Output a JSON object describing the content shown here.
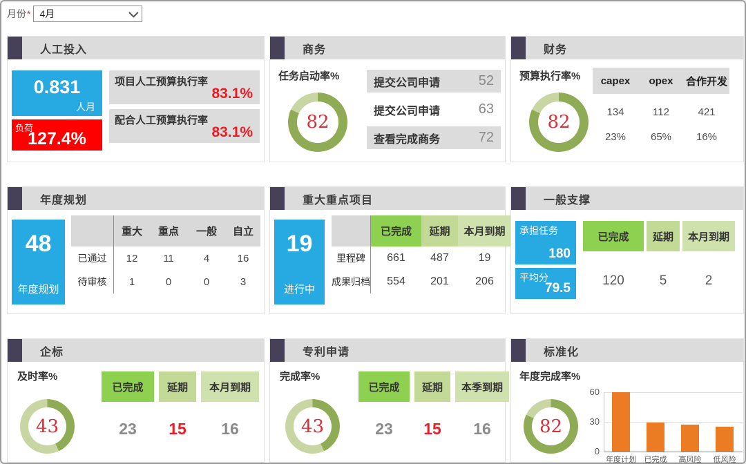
{
  "colors": {
    "accent_purple": "#474059",
    "header_gray": "#dcdcdc",
    "blue": "#27a9e1",
    "red": "#ff0000",
    "red_text": "#ed1c24",
    "donut_dark": "#8fab55",
    "donut_light": "#c9d6a3",
    "donut_number": "#d93038",
    "green_strong": "#8ed04f",
    "green_mid": "#c2da96",
    "green_light": "#cfe2ae",
    "bar_orange": "#ec7c23"
  },
  "filter": {
    "label": "月份",
    "required_mark": "*",
    "value": "4月"
  },
  "panels": {
    "labor": {
      "title": "人工投入",
      "monthly_value": "0.831",
      "monthly_unit": "人月",
      "load_label": "负荷",
      "load_value": "127.4%",
      "metrics": [
        {
          "label": "项目人工预算执行率",
          "value": "83.1%"
        },
        {
          "label": "配合人工预算执行率",
          "value": "83.1%"
        }
      ]
    },
    "business": {
      "title": "商务",
      "gauge_label": "任务启动率%",
      "gauge_value": 82,
      "rows": [
        {
          "label": "提交公司申请",
          "value": "52"
        },
        {
          "label": "提交公司申请",
          "value": "63"
        },
        {
          "label": "查看完成商务",
          "value": "72"
        }
      ]
    },
    "finance": {
      "title": "财务",
      "gauge_label": "预算执行率%",
      "gauge_value": 82,
      "columns": [
        "capex",
        "opex",
        "合作开发"
      ],
      "row1": [
        "134",
        "112",
        "421"
      ],
      "row2": [
        "23%",
        "65%",
        "16%"
      ]
    },
    "annual_plan": {
      "title": "年度规划",
      "big_value": "48",
      "big_label": "年度规划",
      "columns": [
        "重大",
        "重点",
        "一般",
        "自立"
      ],
      "rows": [
        {
          "label": "已通过",
          "values": [
            "12",
            "11",
            "4",
            "16"
          ]
        },
        {
          "label": "待审核",
          "values": [
            "1",
            "0",
            "0",
            "3"
          ]
        }
      ]
    },
    "major_projects": {
      "title": "重大重点项目",
      "big_value": "19",
      "big_label": "进行中",
      "columns": [
        "已完成",
        "延期",
        "本月到期"
      ],
      "rows": [
        {
          "label": "里程碑",
          "values": [
            "661",
            "487",
            "19"
          ]
        },
        {
          "label": "成果归档",
          "values": [
            "554",
            "201",
            "206"
          ]
        }
      ]
    },
    "general_support": {
      "title": "一般支撑",
      "stat1_label": "承担任务",
      "stat1_value": "180",
      "stat2_label": "平均分",
      "stat2_value": "79.5",
      "columns": [
        "已完成",
        "延期",
        "本月到期"
      ],
      "values": [
        "120",
        "5",
        "2"
      ]
    },
    "enterprise_std": {
      "title": "企标",
      "gauge_label": "及时率%",
      "gauge_value": 43,
      "columns": [
        "已完成",
        "延期",
        "本月到期"
      ],
      "values": [
        "23",
        "15",
        "16"
      ]
    },
    "patents": {
      "title": "专利申请",
      "gauge_label": "完成率%",
      "gauge_value": 43,
      "columns": [
        "已完成",
        "延期",
        "本季到期"
      ],
      "values": [
        "23",
        "15",
        "16"
      ]
    },
    "standardization": {
      "title": "标准化",
      "gauge_label": "年度完成率%",
      "gauge_value": 82,
      "chart_data": {
        "type": "bar",
        "categories": [
          "年度计划",
          "已完成",
          "高风险",
          "低风险"
        ],
        "values": [
          60,
          29,
          27,
          25
        ],
        "ylim": [
          0,
          60
        ],
        "yticks": [
          "60",
          "30",
          "0"
        ],
        "bar_color": "#ec7c23"
      }
    }
  }
}
